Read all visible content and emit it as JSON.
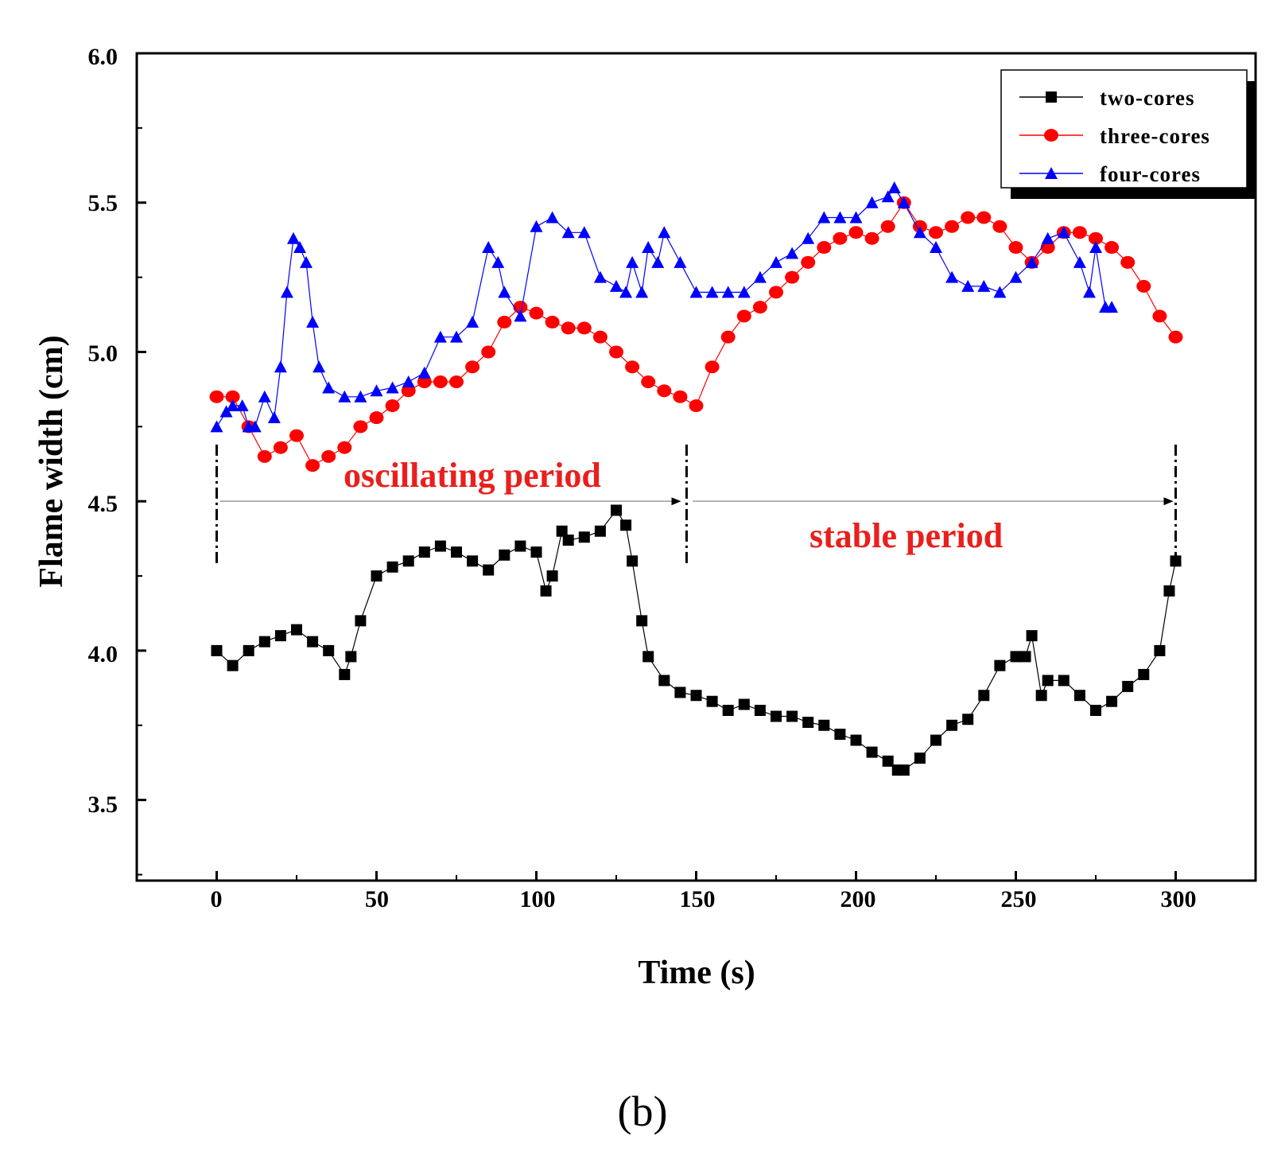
{
  "chart_data": {
    "type": "line",
    "xlabel": "Time (s)",
    "ylabel": "Flame width (cm)",
    "xlim": [
      -25,
      325
    ],
    "ylim": [
      3.23,
      6.0
    ],
    "xticks": [
      0,
      50,
      100,
      150,
      200,
      250,
      300
    ],
    "yticks": [
      3.5,
      4.0,
      4.5,
      5.0,
      5.5,
      6.0
    ],
    "xtick_labels": [
      "0",
      "50",
      "100",
      "150",
      "200",
      "250",
      "300"
    ],
    "ytick_labels": [
      "3.5",
      "4.0",
      "4.5",
      "5.0",
      "5.5",
      "6.0"
    ],
    "legend_position": "top-right",
    "series": [
      {
        "name": "two-cores",
        "color": "#000000",
        "marker": "square",
        "x": [
          0,
          5,
          10,
          15,
          20,
          25,
          30,
          35,
          40,
          42,
          45,
          50,
          55,
          60,
          65,
          70,
          75,
          80,
          85,
          90,
          95,
          100,
          103,
          105,
          108,
          110,
          115,
          120,
          125,
          128,
          130,
          133,
          135,
          140,
          145,
          150,
          155,
          160,
          165,
          170,
          175,
          180,
          185,
          190,
          195,
          200,
          205,
          210,
          213,
          215,
          220,
          225,
          230,
          235,
          240,
          245,
          250,
          253,
          255,
          258,
          260,
          265,
          270,
          275,
          280,
          285,
          290,
          295,
          298,
          300
        ],
        "y": [
          4.0,
          3.95,
          4.0,
          4.03,
          4.05,
          4.07,
          4.03,
          4.0,
          3.92,
          3.98,
          4.1,
          4.25,
          4.28,
          4.3,
          4.33,
          4.35,
          4.33,
          4.3,
          4.27,
          4.32,
          4.35,
          4.33,
          4.2,
          4.25,
          4.4,
          4.37,
          4.38,
          4.4,
          4.47,
          4.42,
          4.3,
          4.1,
          3.98,
          3.9,
          3.86,
          3.85,
          3.83,
          3.8,
          3.82,
          3.8,
          3.78,
          3.78,
          3.76,
          3.75,
          3.72,
          3.7,
          3.66,
          3.63,
          3.6,
          3.6,
          3.64,
          3.7,
          3.75,
          3.77,
          3.85,
          3.95,
          3.98,
          3.98,
          4.05,
          3.85,
          3.9,
          3.9,
          3.85,
          3.8,
          3.83,
          3.88,
          3.92,
          4.0,
          4.2,
          4.3
        ]
      },
      {
        "name": "three-cores",
        "color": "#ff0000",
        "marker": "circle",
        "x": [
          0,
          5,
          10,
          15,
          20,
          25,
          30,
          35,
          40,
          45,
          50,
          55,
          60,
          65,
          70,
          75,
          80,
          85,
          90,
          95,
          100,
          105,
          110,
          115,
          120,
          125,
          130,
          135,
          140,
          145,
          150,
          155,
          160,
          165,
          170,
          175,
          180,
          185,
          190,
          195,
          200,
          205,
          210,
          215,
          220,
          225,
          230,
          235,
          240,
          245,
          250,
          255,
          260,
          265,
          270,
          275,
          280,
          285,
          290,
          295,
          300
        ],
        "y": [
          4.85,
          4.85,
          4.75,
          4.65,
          4.68,
          4.72,
          4.62,
          4.65,
          4.68,
          4.75,
          4.78,
          4.82,
          4.87,
          4.9,
          4.9,
          4.9,
          4.95,
          5.0,
          5.1,
          5.15,
          5.13,
          5.1,
          5.08,
          5.08,
          5.05,
          5.0,
          4.95,
          4.9,
          4.87,
          4.85,
          4.82,
          4.95,
          5.05,
          5.12,
          5.15,
          5.2,
          5.25,
          5.3,
          5.35,
          5.38,
          5.4,
          5.38,
          5.42,
          5.5,
          5.42,
          5.4,
          5.42,
          5.45,
          5.45,
          5.42,
          5.35,
          5.3,
          5.35,
          5.4,
          5.4,
          5.38,
          5.35,
          5.3,
          5.22,
          5.12,
          5.05
        ]
      },
      {
        "name": "four-cores",
        "color": "#0000ff",
        "marker": "triangle",
        "x": [
          0,
          3,
          5,
          8,
          10,
          12,
          15,
          18,
          20,
          22,
          24,
          26,
          28,
          30,
          32,
          35,
          40,
          45,
          50,
          55,
          60,
          65,
          70,
          75,
          80,
          85,
          88,
          90,
          95,
          100,
          105,
          110,
          115,
          120,
          125,
          128,
          130,
          133,
          135,
          138,
          140,
          145,
          150,
          155,
          160,
          165,
          170,
          175,
          180,
          185,
          190,
          195,
          200,
          205,
          210,
          212,
          215,
          220,
          225,
          230,
          235,
          240,
          245,
          250,
          255,
          260,
          265,
          270,
          273,
          275,
          278,
          280
        ],
        "y": [
          4.75,
          4.8,
          4.82,
          4.82,
          4.75,
          4.75,
          4.85,
          4.78,
          4.95,
          5.2,
          5.38,
          5.35,
          5.3,
          5.1,
          4.95,
          4.88,
          4.85,
          4.85,
          4.87,
          4.88,
          4.9,
          4.93,
          5.05,
          5.05,
          5.1,
          5.35,
          5.3,
          5.2,
          5.12,
          5.42,
          5.45,
          5.4,
          5.4,
          5.25,
          5.22,
          5.2,
          5.3,
          5.2,
          5.35,
          5.3,
          5.4,
          5.3,
          5.2,
          5.2,
          5.2,
          5.2,
          5.25,
          5.3,
          5.33,
          5.38,
          5.45,
          5.45,
          5.45,
          5.5,
          5.52,
          5.55,
          5.5,
          5.4,
          5.35,
          5.25,
          5.22,
          5.22,
          5.2,
          5.25,
          5.3,
          5.38,
          5.4,
          5.3,
          5.2,
          5.35,
          5.15,
          5.15
        ]
      }
    ],
    "annotations": [
      {
        "text": "oscillating period",
        "color": "#e8201d"
      },
      {
        "text": "stable period",
        "color": "#e8201d"
      }
    ],
    "period_markers": [
      0,
      147,
      300
    ],
    "panel_label": "(b)"
  }
}
